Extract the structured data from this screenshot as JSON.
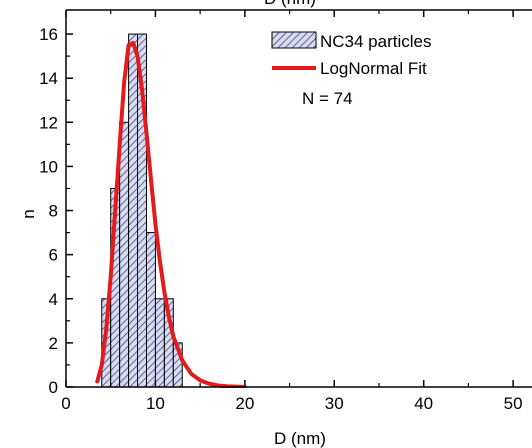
{
  "chart_data": {
    "type": "bar",
    "xlabel": "D (nm)",
    "xlabel_top": "D (nm)",
    "ylabel": "n",
    "xlim": [
      0,
      52
    ],
    "ylim": [
      0,
      17
    ],
    "x_ticks": [
      0,
      10,
      20,
      30,
      40,
      50
    ],
    "y_ticks": [
      0,
      2,
      4,
      6,
      8,
      10,
      12,
      14,
      16
    ],
    "grid": false,
    "legend_position": "top-right",
    "colors": {
      "bar_fill": "#d8dcf0",
      "bar_hatch": "#2b2f6e",
      "fit_line": "#e41a1c"
    },
    "histogram": {
      "name": "NC34 particles",
      "bin_width": 1,
      "bins": [
        {
          "start": 4,
          "count": 4
        },
        {
          "start": 5,
          "count": 9
        },
        {
          "start": 6,
          "count": 12
        },
        {
          "start": 7,
          "count": 16
        },
        {
          "start": 8,
          "count": 16
        },
        {
          "start": 9,
          "count": 7
        },
        {
          "start": 10,
          "count": 4
        },
        {
          "start": 11,
          "count": 4
        },
        {
          "start": 12,
          "count": 2
        }
      ]
    },
    "fit": {
      "name": "LogNormal Fit",
      "points": [
        [
          3.5,
          0.25
        ],
        [
          4.0,
          1.0
        ],
        [
          4.5,
          2.6
        ],
        [
          5.0,
          5.0
        ],
        [
          5.5,
          8.0
        ],
        [
          6.0,
          11.0
        ],
        [
          6.5,
          13.8
        ],
        [
          7.0,
          15.5
        ],
        [
          7.5,
          15.6
        ],
        [
          8.0,
          15.0
        ],
        [
          8.5,
          13.5
        ],
        [
          9.0,
          11.5
        ],
        [
          9.5,
          9.4
        ],
        [
          10.0,
          7.4
        ],
        [
          10.5,
          5.7
        ],
        [
          11.0,
          4.3
        ],
        [
          11.5,
          3.2
        ],
        [
          12.0,
          2.3
        ],
        [
          13.0,
          1.2
        ],
        [
          14.0,
          0.6
        ],
        [
          15.0,
          0.3
        ],
        [
          16.0,
          0.15
        ],
        [
          17.0,
          0.07
        ],
        [
          18.0,
          0.03
        ],
        [
          20.0,
          0.0
        ]
      ]
    },
    "annotation": "N = 74"
  }
}
